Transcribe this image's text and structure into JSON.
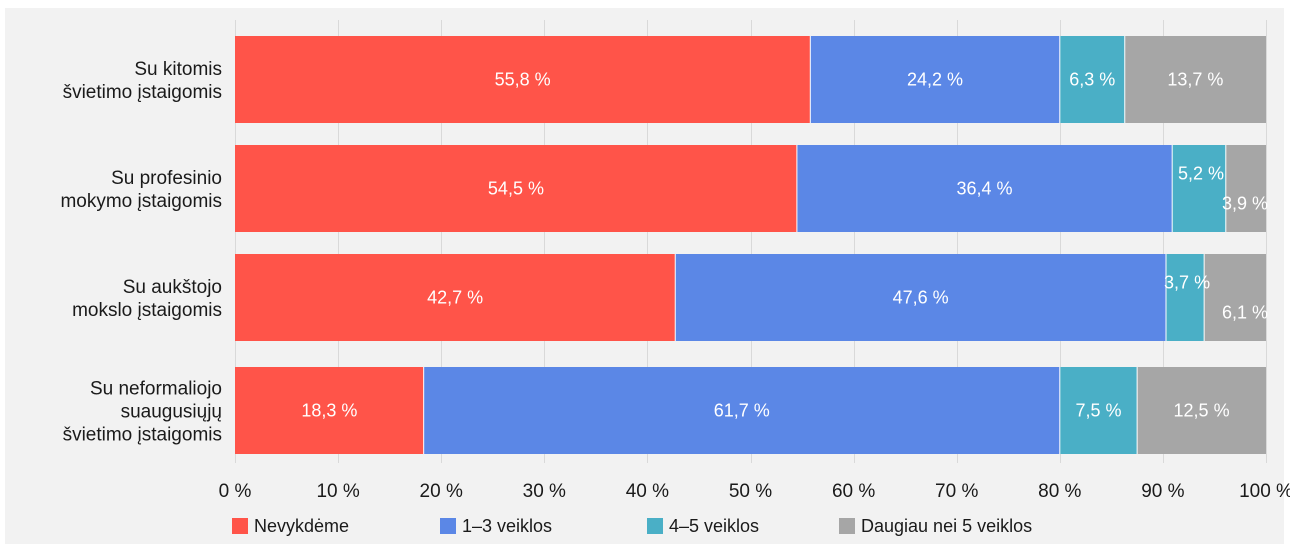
{
  "chart_data": {
    "type": "bar",
    "orientation": "horizontal",
    "stacked": true,
    "categories": [
      [
        "Su kitomis",
        "švietimo įstaigomis"
      ],
      [
        "Su profesinio",
        "mokymo įstaigomis"
      ],
      [
        "Su aukštojo",
        "mokslo įstaigomis"
      ],
      [
        "Su neformaliojo",
        "suaugusiųjų",
        "švietimo įstaigomis"
      ]
    ],
    "series": [
      {
        "name": "Nevykdėme",
        "color": "#ff5449",
        "values": [
          55.8,
          54.5,
          42.7,
          18.3
        ],
        "labels": [
          "55,8 %",
          "54,5 %",
          "42,7 %",
          "18,3 %"
        ]
      },
      {
        "name": "1–3 veiklos",
        "color": "#5b87e6",
        "values": [
          24.2,
          36.4,
          47.6,
          61.7
        ],
        "labels": [
          "24,2 %",
          "36,4 %",
          "47,6 %",
          "61,7 %"
        ]
      },
      {
        "name": "4–5 veiklos",
        "color": "#4aafc6",
        "values": [
          6.3,
          5.2,
          3.7,
          7.5
        ],
        "labels": [
          "6,3 %",
          "5,2 %",
          "3,7 %",
          "7,5 %"
        ]
      },
      {
        "name": "Daugiau nei 5 veiklos",
        "color": "#a6a6a6",
        "values": [
          13.7,
          3.9,
          6.1,
          12.5
        ],
        "labels": [
          "13,7 %",
          "3,9 %",
          "6,1 %",
          "12,5 %"
        ]
      }
    ],
    "xlim": [
      0,
      100
    ],
    "x_ticks": [
      0,
      10,
      20,
      30,
      40,
      50,
      60,
      70,
      80,
      90,
      100
    ],
    "x_tick_labels": [
      "0 %",
      "10 %",
      "20 %",
      "30 %",
      "40 %",
      "50 %",
      "60 %",
      "70 %",
      "80 %",
      "90 %",
      "100 %"
    ],
    "grid": "vertical",
    "legend_position": "bottom",
    "background": "#f2f2f2"
  }
}
